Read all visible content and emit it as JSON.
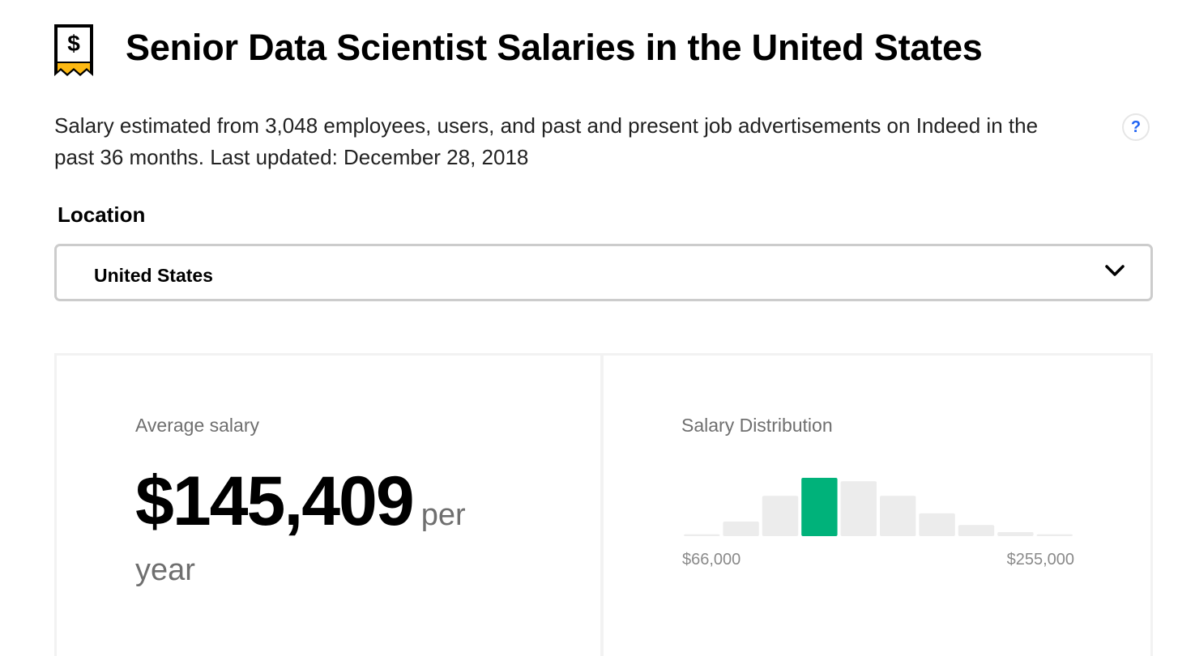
{
  "header": {
    "icon": "salary-receipt-icon",
    "title": "Senior Data Scientist Salaries in the United States",
    "description": "Salary estimated from 3,048 employees, users, and past and present job advertisements on Indeed in the past 36 months. Last updated: December 28, 2018",
    "help_label": "?"
  },
  "location": {
    "label": "Location",
    "selected": "United States",
    "dropdown_icon": "chevron-down-icon"
  },
  "average": {
    "label": "Average salary",
    "amount": "$145,409",
    "period": "per year"
  },
  "distribution": {
    "label": "Salary Distribution",
    "min_label": "$66,000",
    "max_label": "$255,000",
    "highlight_color": "#00b27a",
    "bar_color": "#ececec"
  },
  "chart_data": {
    "type": "bar",
    "title": "Salary Distribution",
    "categories": [
      "1",
      "2",
      "3",
      "4",
      "5",
      "6",
      "7",
      "8",
      "9",
      "10"
    ],
    "values": [
      0.03,
      0.25,
      0.69,
      1.0,
      0.94,
      0.69,
      0.39,
      0.19,
      0.07,
      0.03
    ],
    "highlight_index": 3,
    "x_range_labels": [
      "$66,000",
      "$255,000"
    ],
    "ylim": [
      0,
      1
    ],
    "grid": false
  }
}
